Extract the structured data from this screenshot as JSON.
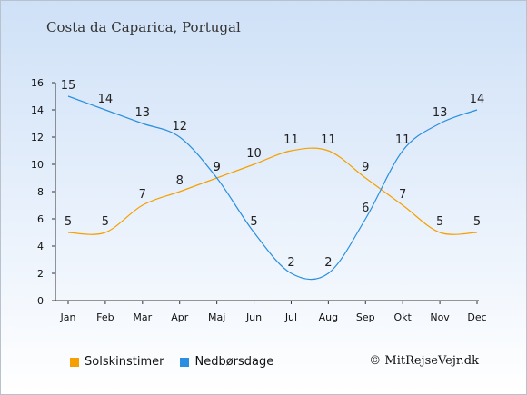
{
  "chart_data": {
    "type": "line",
    "title": "Costa da Caparica, Portugal",
    "categories": [
      "Jan",
      "Feb",
      "Mar",
      "Apr",
      "Maj",
      "Jun",
      "Jul",
      "Aug",
      "Sep",
      "Okt",
      "Nov",
      "Dec"
    ],
    "ylim": [
      0,
      16
    ],
    "yticks": [
      0,
      2,
      4,
      6,
      8,
      10,
      12,
      14,
      16
    ],
    "grid": false,
    "legend_position": "bottom-left",
    "series": [
      {
        "name": "Solskinstimer",
        "color": "#f5a000",
        "values": [
          5,
          5,
          7,
          8,
          9,
          10,
          11,
          11,
          9,
          7,
          5,
          5
        ]
      },
      {
        "name": "Nedbørsdage",
        "color": "#2a8fe0",
        "values": [
          15,
          14,
          13,
          12,
          9,
          5,
          2,
          2,
          6,
          11,
          13,
          14
        ]
      }
    ]
  },
  "copyright": "© MitRejseVejr.dk"
}
